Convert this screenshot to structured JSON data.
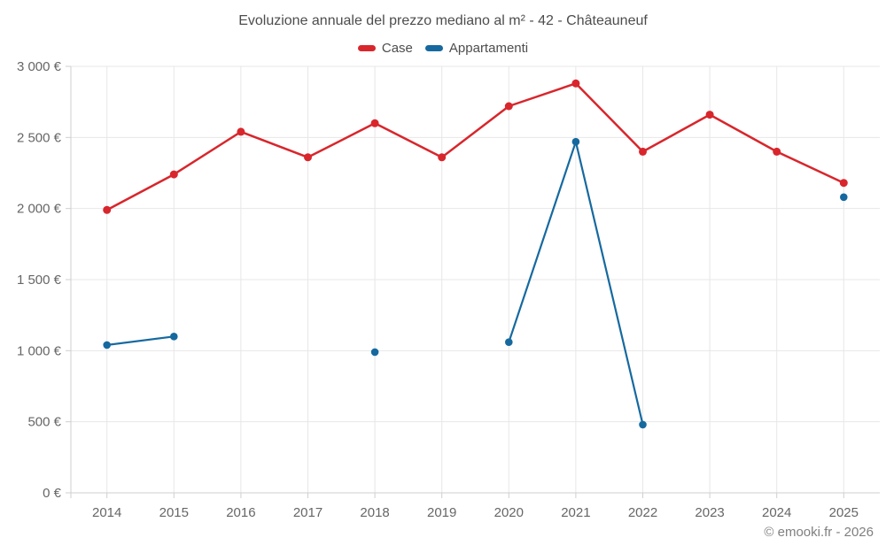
{
  "header": {
    "title": "Evoluzione annuale del prezzo mediano al m² - 42 - Châteauneuf"
  },
  "footer": {
    "copyright": "© emooki.fr - 2026"
  },
  "colors": {
    "case_red": "#d8262c",
    "appartamenti_blue": "#16699f",
    "gridline": "#e7e7e7",
    "axis_line": "#cfcfcf",
    "axis_text": "#666666",
    "title_text": "#4d4d4d"
  },
  "chart_data": {
    "type": "line",
    "title": "Evoluzione annuale del prezzo mediano al m² - 42 - Châteauneuf",
    "xlabel": "",
    "ylabel": "",
    "x": [
      "2014",
      "2015",
      "2016",
      "2017",
      "2018",
      "2019",
      "2020",
      "2021",
      "2022",
      "2023",
      "2024",
      "2025"
    ],
    "ylim": [
      0,
      3000
    ],
    "grid": true,
    "legend_position": "top",
    "y_ticks": [
      {
        "value": 0,
        "label": "0 €"
      },
      {
        "value": 500,
        "label": "500 €"
      },
      {
        "value": 1000,
        "label": "1 000 €"
      },
      {
        "value": 1500,
        "label": "1 500 €"
      },
      {
        "value": 2000,
        "label": "2 000 €"
      },
      {
        "value": 2500,
        "label": "2 500 €"
      },
      {
        "value": 3000,
        "label": "3 000 €"
      }
    ],
    "series": [
      {
        "name": "Case",
        "color": "#d8262c",
        "values": [
          1990,
          2240,
          2540,
          2360,
          2600,
          2360,
          2720,
          2880,
          2400,
          2660,
          2400,
          2180
        ]
      },
      {
        "name": "Appartamenti",
        "color": "#16699f",
        "values": [
          1040,
          1100,
          null,
          null,
          990,
          null,
          1060,
          2470,
          480,
          null,
          null,
          2080
        ]
      }
    ]
  }
}
